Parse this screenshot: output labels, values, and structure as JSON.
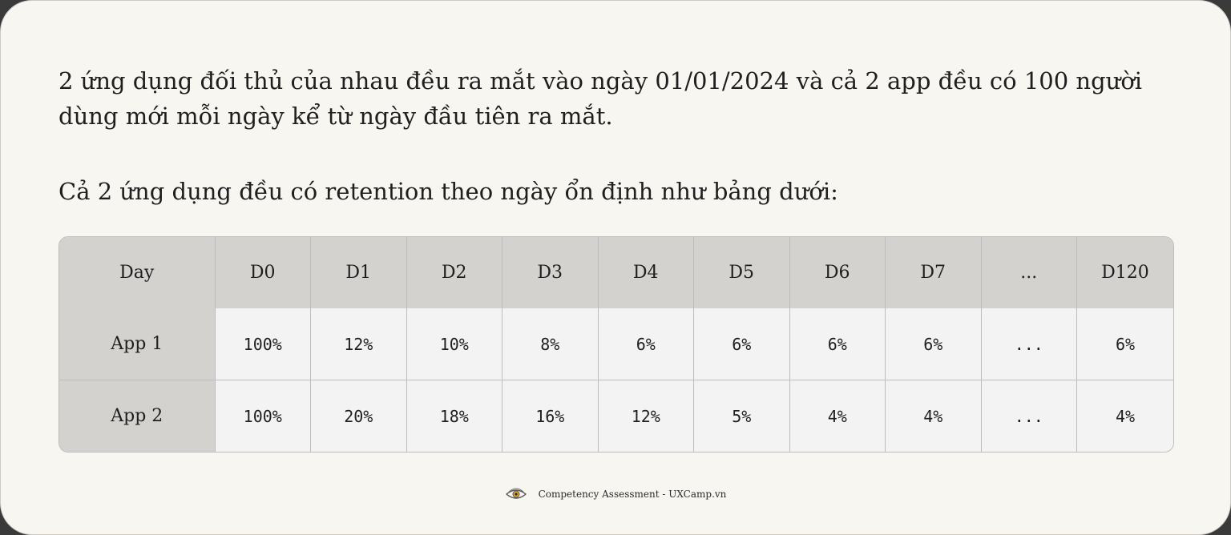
{
  "intro": {
    "paragraph1": "2 ứng dụng đối thủ của nhau đều ra mắt vào ngày 01/01/2024 và cả 2 app đều có 100 người dùng mới mỗi ngày kể từ ngày đầu tiên ra mắt.",
    "paragraph2": "Cả 2 ứng dụng đều có retention theo ngày ổn định như bảng dưới:"
  },
  "table": {
    "headers": [
      "Day",
      "D0",
      "D1",
      "D2",
      "D3",
      "D4",
      "D5",
      "D6",
      "D7",
      "...",
      "D120"
    ],
    "rows": [
      {
        "label": "App 1",
        "values": [
          "100%",
          "12%",
          "10%",
          "8%",
          "6%",
          "6%",
          "6%",
          "6%",
          "...",
          "6%"
        ]
      },
      {
        "label": "App 2",
        "values": [
          "100%",
          "20%",
          "18%",
          "16%",
          "12%",
          "5%",
          "4%",
          "4%",
          "...",
          "4%"
        ]
      }
    ]
  },
  "footer": {
    "logo_icon": "eye-logo-icon",
    "text": "Competency Assessment - UXCamp.vn"
  }
}
